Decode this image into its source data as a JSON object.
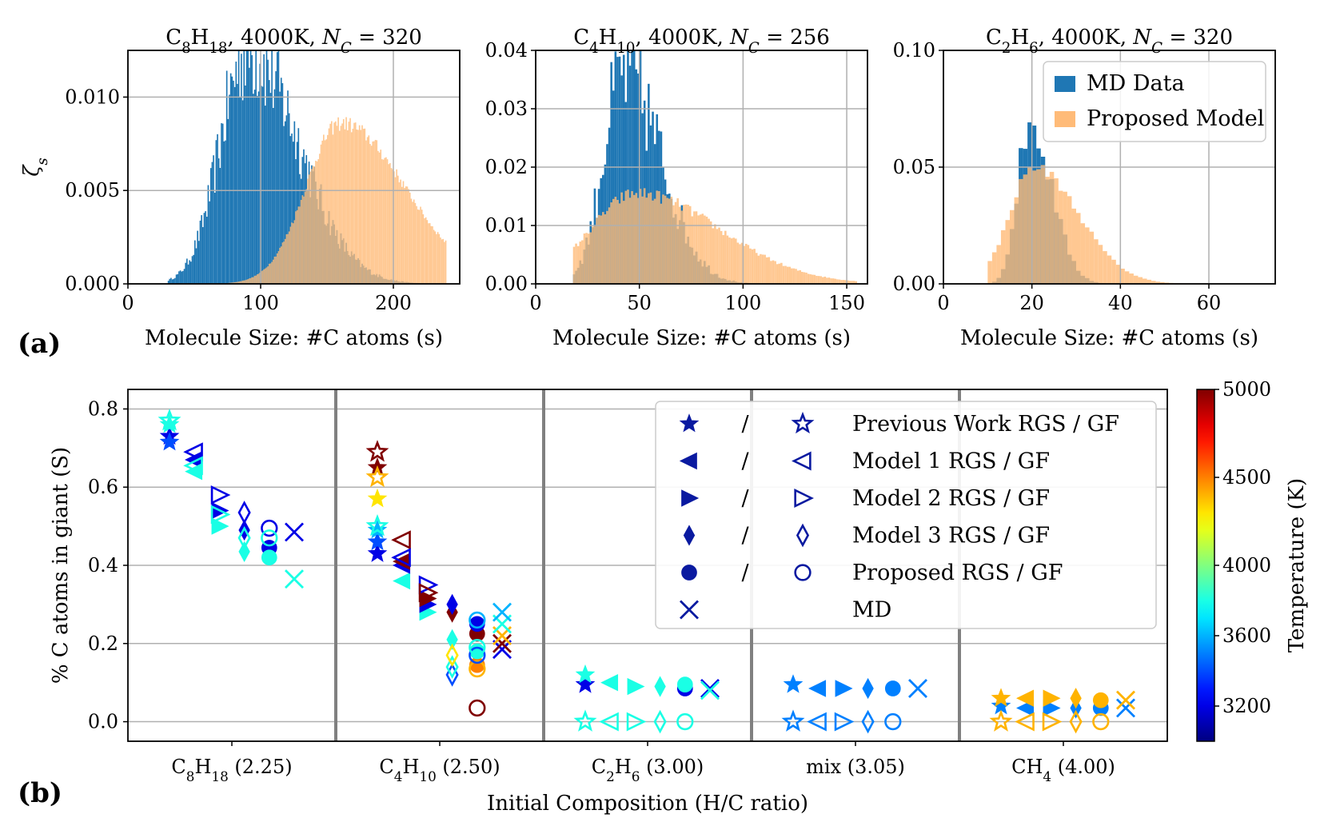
{
  "panel_labels": [
    "(a)",
    "(b)"
  ],
  "chart_data": [
    {
      "type": "bar",
      "title": "C8H18, 4000K, N_C = 320",
      "xlabel": "Molecule Size: #C atoms (s)",
      "ylabel": "ζs",
      "xlim": [
        0,
        250
      ],
      "ylim": [
        0,
        0.0125
      ],
      "xticks": [
        0,
        100,
        200
      ],
      "xtick_labels": [
        "0",
        "100",
        "200"
      ],
      "yticks": [
        0,
        0.005,
        0.01
      ],
      "ytick_labels": [
        "0.000",
        "0.005",
        "0.010"
      ],
      "grid": true,
      "series": [
        {
          "name": "MD Data",
          "color": "#1f77b4",
          "range": [
            30,
            220
          ],
          "mode": 90,
          "spread": 38,
          "peak": 0.0125,
          "noise": 0.45
        },
        {
          "name": "Proposed Model",
          "color": "#ffbb78",
          "range": [
            32,
            240
          ],
          "mode": 160,
          "spread": 48,
          "peak": 0.0086,
          "noise": 0.1
        }
      ]
    },
    {
      "type": "bar",
      "title": "C4H10, 4000K, N_C = 256",
      "xlabel": "Molecule Size: #C atoms (s)",
      "ylabel": "",
      "xlim": [
        0,
        160
      ],
      "ylim": [
        0,
        0.04
      ],
      "xticks": [
        0,
        50,
        100,
        150
      ],
      "xtick_labels": [
        "0",
        "50",
        "100",
        "150"
      ],
      "yticks": [
        0,
        0.01,
        0.02,
        0.03,
        0.04
      ],
      "ytick_labels": [
        "0.00",
        "0.01",
        "0.02",
        "0.03",
        "0.04"
      ],
      "grid": true,
      "series": [
        {
          "name": "MD Data",
          "color": "#1f77b4",
          "range": [
            18,
            152
          ],
          "mode": 42,
          "spread": 18,
          "peak": 0.036,
          "noise": 0.55
        },
        {
          "name": "Proposed Model",
          "color": "#ffbb78",
          "range": [
            18,
            155
          ],
          "mode": 48,
          "spread": 40,
          "peak": 0.0155,
          "noise": 0.15
        }
      ]
    },
    {
      "type": "bar",
      "title": "C2H6, 4000K, N_C = 320",
      "xlabel": "Molecule Size: #C atoms (s)",
      "ylabel": "",
      "xlim": [
        0,
        75
      ],
      "ylim": [
        0,
        0.1
      ],
      "xticks": [
        0,
        20,
        40,
        60
      ],
      "xtick_labels": [
        "0",
        "20",
        "40",
        "60"
      ],
      "yticks": [
        0,
        0.05,
        0.1
      ],
      "ytick_labels": [
        "0.00",
        "0.05",
        "0.10"
      ],
      "grid": true,
      "legend": {
        "position": "top-right",
        "entries": [
          "MD Data",
          "Proposed Model"
        ]
      },
      "series": [
        {
          "name": "MD Data",
          "color": "#1f77b4",
          "range": [
            10,
            62
          ],
          "mode": 19,
          "spread": 5,
          "peak": 0.068,
          "noise": 0.25
        },
        {
          "name": "Proposed Model",
          "color": "#ffbb78",
          "range": [
            10,
            66
          ],
          "mode": 20,
          "spread": 10,
          "peak": 0.05,
          "noise": 0.1
        }
      ]
    },
    {
      "type": "scatter",
      "title": "",
      "xlabel": "Initial Composition (H/C ratio)",
      "ylabel": "% C atoms in giant (S)",
      "categories": [
        "C8H18 (2.25)",
        "C4H10 (2.50)",
        "C2H6 (3.00)",
        "mix (3.05)",
        "CH4 (4.00)"
      ],
      "ylim": [
        -0.05,
        0.85
      ],
      "yticks": [
        0.0,
        0.2,
        0.4,
        0.6,
        0.8
      ],
      "ytick_labels": [
        "0.0",
        "0.2",
        "0.4",
        "0.6",
        "0.8"
      ],
      "colorbar": {
        "label": "Temperature (K)",
        "range": [
          3000,
          5000
        ],
        "ticks": [
          3200,
          3600,
          4000,
          4500,
          5000
        ],
        "tick_labels": [
          "3200",
          "3600",
          "4000",
          "4500",
          "5000"
        ]
      },
      "legend": [
        {
          "rgs": "star",
          "gf": "star",
          "slash": "/",
          "label": "Previous Work RGS / GF"
        },
        {
          "rgs": "tri-left",
          "gf": "tri-left",
          "slash": "/",
          "label": "Model 1 RGS / GF"
        },
        {
          "rgs": "tri-right",
          "gf": "tri-right",
          "slash": "/",
          "label": "Model 2 RGS / GF"
        },
        {
          "rgs": "diamond",
          "gf": "diamond",
          "slash": "/",
          "label": "Model 3 RGS / GF"
        },
        {
          "rgs": "circle",
          "gf": "circle",
          "slash": "/",
          "label": "Proposed RGS / GF"
        },
        {
          "rgs": "x",
          "gf": "",
          "slash": "",
          "label": "MD"
        }
      ],
      "offsets": {
        "star": -0.3,
        "tri-left": -0.18,
        "tri-right": -0.06,
        "diamond": 0.06,
        "circle": 0.18,
        "x": 0.3
      },
      "points": [
        {
          "cat": 0,
          "m": "star",
          "f": 1,
          "y": 0.73,
          "T": 3200
        },
        {
          "cat": 0,
          "m": "star",
          "f": 1,
          "y": 0.715,
          "T": 3400
        },
        {
          "cat": 0,
          "m": "star",
          "f": 1,
          "y": 0.76,
          "T": 3800
        },
        {
          "cat": 0,
          "m": "star",
          "f": 0,
          "y": 0.77,
          "T": 3800
        },
        {
          "cat": 0,
          "m": "tri-left",
          "f": 1,
          "y": 0.67,
          "T": 3200
        },
        {
          "cat": 0,
          "m": "tri-left",
          "f": 1,
          "y": 0.64,
          "T": 3800
        },
        {
          "cat": 0,
          "m": "tri-left",
          "f": 0,
          "y": 0.69,
          "T": 3200
        },
        {
          "cat": 0,
          "m": "tri-left",
          "f": 0,
          "y": 0.655,
          "T": 3800
        },
        {
          "cat": 0,
          "m": "tri-right",
          "f": 1,
          "y": 0.54,
          "T": 3200
        },
        {
          "cat": 0,
          "m": "tri-right",
          "f": 1,
          "y": 0.5,
          "T": 3800
        },
        {
          "cat": 0,
          "m": "tri-right",
          "f": 0,
          "y": 0.58,
          "T": 3200
        },
        {
          "cat": 0,
          "m": "tri-right",
          "f": 0,
          "y": 0.53,
          "T": 3800
        },
        {
          "cat": 0,
          "m": "diamond",
          "f": 1,
          "y": 0.49,
          "T": 3200
        },
        {
          "cat": 0,
          "m": "diamond",
          "f": 1,
          "y": 0.435,
          "T": 3800
        },
        {
          "cat": 0,
          "m": "diamond",
          "f": 0,
          "y": 0.535,
          "T": 3200
        },
        {
          "cat": 0,
          "m": "diamond",
          "f": 0,
          "y": 0.47,
          "T": 3800
        },
        {
          "cat": 0,
          "m": "circle",
          "f": 1,
          "y": 0.445,
          "T": 3200
        },
        {
          "cat": 0,
          "m": "circle",
          "f": 1,
          "y": 0.42,
          "T": 3800
        },
        {
          "cat": 0,
          "m": "circle",
          "f": 0,
          "y": 0.495,
          "T": 3200
        },
        {
          "cat": 0,
          "m": "circle",
          "f": 0,
          "y": 0.47,
          "T": 3800
        },
        {
          "cat": 0,
          "m": "x",
          "f": 0,
          "y": 0.485,
          "T": 3200
        },
        {
          "cat": 0,
          "m": "x",
          "f": 0,
          "y": 0.365,
          "T": 3800
        },
        {
          "cat": 1,
          "m": "star",
          "f": 1,
          "y": 0.43,
          "T": 3200
        },
        {
          "cat": 1,
          "m": "star",
          "f": 1,
          "y": 0.46,
          "T": 3400
        },
        {
          "cat": 1,
          "m": "star",
          "f": 1,
          "y": 0.49,
          "T": 3600
        },
        {
          "cat": 1,
          "m": "star",
          "f": 1,
          "y": 0.57,
          "T": 4300
        },
        {
          "cat": 1,
          "m": "star",
          "f": 1,
          "y": 0.65,
          "T": 5000
        },
        {
          "cat": 1,
          "m": "star",
          "f": 0,
          "y": 0.5,
          "T": 3800
        },
        {
          "cat": 1,
          "m": "star",
          "f": 0,
          "y": 0.625,
          "T": 4400
        },
        {
          "cat": 1,
          "m": "star",
          "f": 0,
          "y": 0.69,
          "T": 5000
        },
        {
          "cat": 1,
          "m": "tri-left",
          "f": 1,
          "y": 0.36,
          "T": 3800
        },
        {
          "cat": 1,
          "m": "tri-left",
          "f": 1,
          "y": 0.4,
          "T": 3200
        },
        {
          "cat": 1,
          "m": "tri-left",
          "f": 1,
          "y": 0.41,
          "T": 5000
        },
        {
          "cat": 1,
          "m": "tri-left",
          "f": 0,
          "y": 0.465,
          "T": 5000
        },
        {
          "cat": 1,
          "m": "tri-left",
          "f": 0,
          "y": 0.42,
          "T": 3200
        },
        {
          "cat": 1,
          "m": "tri-right",
          "f": 1,
          "y": 0.28,
          "T": 3800
        },
        {
          "cat": 1,
          "m": "tri-right",
          "f": 1,
          "y": 0.3,
          "T": 3200
        },
        {
          "cat": 1,
          "m": "tri-right",
          "f": 1,
          "y": 0.315,
          "T": 5000
        },
        {
          "cat": 1,
          "m": "tri-right",
          "f": 0,
          "y": 0.35,
          "T": 3200
        },
        {
          "cat": 1,
          "m": "tri-right",
          "f": 0,
          "y": 0.33,
          "T": 5000
        },
        {
          "cat": 1,
          "m": "diamond",
          "f": 1,
          "y": 0.21,
          "T": 3800
        },
        {
          "cat": 1,
          "m": "diamond",
          "f": 1,
          "y": 0.28,
          "T": 5000
        },
        {
          "cat": 1,
          "m": "diamond",
          "f": 1,
          "y": 0.3,
          "T": 3200
        },
        {
          "cat": 1,
          "m": "diamond",
          "f": 0,
          "y": 0.12,
          "T": 3400
        },
        {
          "cat": 1,
          "m": "diamond",
          "f": 0,
          "y": 0.14,
          "T": 3800
        },
        {
          "cat": 1,
          "m": "diamond",
          "f": 0,
          "y": 0.17,
          "T": 4300
        },
        {
          "cat": 1,
          "m": "circle",
          "f": 1,
          "y": 0.145,
          "T": 4500
        },
        {
          "cat": 1,
          "m": "circle",
          "f": 1,
          "y": 0.18,
          "T": 3800
        },
        {
          "cat": 1,
          "m": "circle",
          "f": 1,
          "y": 0.225,
          "T": 5000
        },
        {
          "cat": 1,
          "m": "circle",
          "f": 1,
          "y": 0.25,
          "T": 3200
        },
        {
          "cat": 1,
          "m": "circle",
          "f": 0,
          "y": 0.035,
          "T": 5000
        },
        {
          "cat": 1,
          "m": "circle",
          "f": 0,
          "y": 0.135,
          "T": 4400
        },
        {
          "cat": 1,
          "m": "circle",
          "f": 0,
          "y": 0.17,
          "T": 3400
        },
        {
          "cat": 1,
          "m": "circle",
          "f": 0,
          "y": 0.19,
          "T": 3800
        },
        {
          "cat": 1,
          "m": "circle",
          "f": 0,
          "y": 0.26,
          "T": 3600
        },
        {
          "cat": 1,
          "m": "x",
          "f": 0,
          "y": 0.185,
          "T": 3200
        },
        {
          "cat": 1,
          "m": "x",
          "f": 0,
          "y": 0.2,
          "T": 5000
        },
        {
          "cat": 1,
          "m": "x",
          "f": 0,
          "y": 0.22,
          "T": 4400
        },
        {
          "cat": 1,
          "m": "x",
          "f": 0,
          "y": 0.25,
          "T": 3800
        },
        {
          "cat": 1,
          "m": "x",
          "f": 0,
          "y": 0.28,
          "T": 3600
        },
        {
          "cat": 2,
          "m": "star",
          "f": 1,
          "y": 0.095,
          "T": 3200
        },
        {
          "cat": 2,
          "m": "star",
          "f": 1,
          "y": 0.12,
          "T": 3800
        },
        {
          "cat": 2,
          "m": "star",
          "f": 0,
          "y": 0.0,
          "T": 3800
        },
        {
          "cat": 2,
          "m": "tri-left",
          "f": 1,
          "y": 0.1,
          "T": 3800
        },
        {
          "cat": 2,
          "m": "tri-left",
          "f": 0,
          "y": 0.0,
          "T": 3800
        },
        {
          "cat": 2,
          "m": "tri-right",
          "f": 1,
          "y": 0.09,
          "T": 3800
        },
        {
          "cat": 2,
          "m": "tri-right",
          "f": 0,
          "y": 0.0,
          "T": 3800
        },
        {
          "cat": 2,
          "m": "diamond",
          "f": 1,
          "y": 0.09,
          "T": 3800
        },
        {
          "cat": 2,
          "m": "diamond",
          "f": 0,
          "y": 0.0,
          "T": 3800
        },
        {
          "cat": 2,
          "m": "circle",
          "f": 1,
          "y": 0.085,
          "T": 3200
        },
        {
          "cat": 2,
          "m": "circle",
          "f": 1,
          "y": 0.095,
          "T": 3800
        },
        {
          "cat": 2,
          "m": "circle",
          "f": 0,
          "y": 0.0,
          "T": 3800
        },
        {
          "cat": 2,
          "m": "x",
          "f": 0,
          "y": 0.085,
          "T": 3200
        },
        {
          "cat": 2,
          "m": "x",
          "f": 0,
          "y": 0.08,
          "T": 3800
        },
        {
          "cat": 3,
          "m": "star",
          "f": 1,
          "y": 0.095,
          "T": 3500
        },
        {
          "cat": 3,
          "m": "star",
          "f": 0,
          "y": 0.0,
          "T": 3500
        },
        {
          "cat": 3,
          "m": "tri-left",
          "f": 1,
          "y": 0.085,
          "T": 3500
        },
        {
          "cat": 3,
          "m": "tri-left",
          "f": 0,
          "y": 0.0,
          "T": 3500
        },
        {
          "cat": 3,
          "m": "tri-right",
          "f": 1,
          "y": 0.085,
          "T": 3500
        },
        {
          "cat": 3,
          "m": "tri-right",
          "f": 0,
          "y": 0.0,
          "T": 3500
        },
        {
          "cat": 3,
          "m": "diamond",
          "f": 1,
          "y": 0.085,
          "T": 3500
        },
        {
          "cat": 3,
          "m": "diamond",
          "f": 0,
          "y": 0.0,
          "T": 3500
        },
        {
          "cat": 3,
          "m": "circle",
          "f": 1,
          "y": 0.085,
          "T": 3500
        },
        {
          "cat": 3,
          "m": "circle",
          "f": 0,
          "y": 0.0,
          "T": 3500
        },
        {
          "cat": 3,
          "m": "x",
          "f": 0,
          "y": 0.085,
          "T": 3500
        },
        {
          "cat": 4,
          "m": "star",
          "f": 1,
          "y": 0.04,
          "T": 3500
        },
        {
          "cat": 4,
          "m": "star",
          "f": 1,
          "y": 0.06,
          "T": 4400
        },
        {
          "cat": 4,
          "m": "star",
          "f": 0,
          "y": 0.0,
          "T": 4400
        },
        {
          "cat": 4,
          "m": "tri-left",
          "f": 1,
          "y": 0.035,
          "T": 3500
        },
        {
          "cat": 4,
          "m": "tri-left",
          "f": 1,
          "y": 0.06,
          "T": 4400
        },
        {
          "cat": 4,
          "m": "tri-left",
          "f": 0,
          "y": 0.0,
          "T": 4400
        },
        {
          "cat": 4,
          "m": "tri-right",
          "f": 1,
          "y": 0.035,
          "T": 3500
        },
        {
          "cat": 4,
          "m": "tri-right",
          "f": 1,
          "y": 0.06,
          "T": 4400
        },
        {
          "cat": 4,
          "m": "tri-right",
          "f": 0,
          "y": 0.0,
          "T": 4400
        },
        {
          "cat": 4,
          "m": "diamond",
          "f": 1,
          "y": 0.035,
          "T": 3500
        },
        {
          "cat": 4,
          "m": "diamond",
          "f": 1,
          "y": 0.06,
          "T": 4400
        },
        {
          "cat": 4,
          "m": "diamond",
          "f": 0,
          "y": 0.0,
          "T": 4400
        },
        {
          "cat": 4,
          "m": "circle",
          "f": 1,
          "y": 0.035,
          "T": 3500
        },
        {
          "cat": 4,
          "m": "circle",
          "f": 1,
          "y": 0.055,
          "T": 4400
        },
        {
          "cat": 4,
          "m": "circle",
          "f": 0,
          "y": 0.0,
          "T": 4400
        },
        {
          "cat": 4,
          "m": "x",
          "f": 0,
          "y": 0.035,
          "T": 3500
        },
        {
          "cat": 4,
          "m": "x",
          "f": 0,
          "y": 0.055,
          "T": 4400
        }
      ]
    }
  ]
}
